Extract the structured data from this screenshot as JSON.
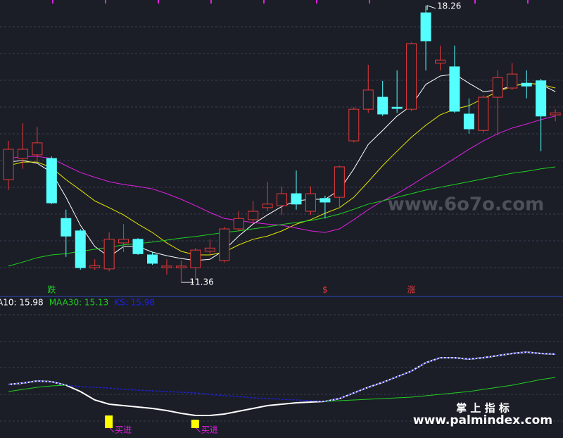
{
  "chart_data": {
    "type": "candlestick",
    "ylim": [
      11.0,
      18.4
    ],
    "candles": [
      {
        "open": 13.91,
        "close": 14.67,
        "high": 14.88,
        "low": 13.65
      },
      {
        "open": 14.44,
        "close": 14.67,
        "high": 15.32,
        "low": 14.18
      },
      {
        "open": 14.53,
        "close": 14.83,
        "high": 15.23,
        "low": 14.35
      },
      {
        "open": 14.44,
        "close": 13.33,
        "high": 14.49,
        "low": 13.3
      },
      {
        "open": 12.94,
        "close": 12.5,
        "high": 13.16,
        "low": 11.98
      },
      {
        "open": 12.63,
        "close": 11.71,
        "high": 12.68,
        "low": 11.66
      },
      {
        "open": 11.71,
        "close": 11.76,
        "high": 11.92,
        "low": 11.66
      },
      {
        "open": 11.68,
        "close": 12.42,
        "high": 12.59,
        "low": 11.62
      },
      {
        "open": 12.33,
        "close": 12.42,
        "high": 12.8,
        "low": 12.1
      },
      {
        "open": 12.42,
        "close": 12.06,
        "high": 12.45,
        "low": 12.03
      },
      {
        "open": 12.03,
        "close": 11.82,
        "high": 12.1,
        "low": 11.78
      },
      {
        "open": 11.71,
        "close": 11.75,
        "high": 11.92,
        "low": 11.54
      },
      {
        "open": 11.71,
        "close": 11.75,
        "high": 11.89,
        "low": 11.36
      },
      {
        "open": 11.71,
        "close": 12.15,
        "high": 12.2,
        "low": 11.4
      },
      {
        "open": 12.12,
        "close": 12.2,
        "high": 12.42,
        "low": 12.03
      },
      {
        "open": 11.89,
        "close": 12.68,
        "high": 12.73,
        "low": 11.84
      },
      {
        "open": 12.68,
        "close": 12.94,
        "high": 13.12,
        "low": 12.63
      },
      {
        "open": 12.91,
        "close": 13.12,
        "high": 13.38,
        "low": 12.8
      },
      {
        "open": 13.21,
        "close": 13.3,
        "high": 13.86,
        "low": 13.12
      },
      {
        "open": 13.26,
        "close": 13.56,
        "high": 13.74,
        "low": 13.03
      },
      {
        "open": 13.56,
        "close": 13.3,
        "high": 14.14,
        "low": 13.16
      },
      {
        "open": 13.12,
        "close": 13.56,
        "high": 13.74,
        "low": 13.03
      },
      {
        "open": 13.44,
        "close": 13.35,
        "high": 13.51,
        "low": 12.94
      },
      {
        "open": 13.47,
        "close": 14.23,
        "high": 14.26,
        "low": 13.21
      },
      {
        "open": 14.88,
        "close": 15.67,
        "high": 15.72,
        "low": 14.84
      },
      {
        "open": 15.67,
        "close": 16.15,
        "high": 16.78,
        "low": 15.58
      },
      {
        "open": 15.97,
        "close": 15.55,
        "high": 16.38,
        "low": 15.5
      },
      {
        "open": 15.72,
        "close": 15.69,
        "high": 16.64,
        "low": 15.58
      },
      {
        "open": 15.67,
        "close": 17.31,
        "high": 17.34,
        "low": 15.62
      },
      {
        "open": 18.08,
        "close": 17.38,
        "high": 18.26,
        "low": 16.64
      },
      {
        "open": 16.82,
        "close": 16.9,
        "high": 17.26,
        "low": 16.64
      },
      {
        "open": 16.73,
        "close": 15.62,
        "high": 17.26,
        "low": 15.58
      },
      {
        "open": 15.55,
        "close": 15.18,
        "high": 15.94,
        "low": 15.06
      },
      {
        "open": 15.14,
        "close": 15.97,
        "high": 16.02,
        "low": 15.09
      },
      {
        "open": 15.97,
        "close": 16.46,
        "high": 16.64,
        "low": 15.02
      },
      {
        "open": 16.2,
        "close": 16.55,
        "high": 16.82,
        "low": 16.15
      },
      {
        "open": 16.32,
        "close": 16.25,
        "high": 16.64,
        "low": 15.94
      },
      {
        "open": 16.38,
        "close": 15.5,
        "high": 16.43,
        "low": 14.62
      },
      {
        "open": 15.53,
        "close": 15.58,
        "high": 15.67,
        "low": 15.37
      }
    ],
    "up_color": "#e8393a",
    "down_color": "#54ffff",
    "lines": [
      {
        "color": "#ffffff",
        "values": [
          14.35,
          14.39,
          14.32,
          14.09,
          13.47,
          12.77,
          12.24,
          11.98,
          12.24,
          12.24,
          12.1,
          12.01,
          11.94,
          11.89,
          11.92,
          12.15,
          12.5,
          12.8,
          13.03,
          13.24,
          13.38,
          13.42,
          13.42,
          13.65,
          14.18,
          14.79,
          15.14,
          15.5,
          15.76,
          16.29,
          16.5,
          16.55,
          16.32,
          16.11,
          16.15,
          16.25,
          16.32,
          16.29,
          16.11
        ]
      },
      {
        "color": "#e6e600",
        "values": [
          14.26,
          14.35,
          14.35,
          14.21,
          13.91,
          13.65,
          13.38,
          13.21,
          13.03,
          12.8,
          12.59,
          12.33,
          12.12,
          12.03,
          12.03,
          12.1,
          12.28,
          12.42,
          12.5,
          12.63,
          12.8,
          12.91,
          13.07,
          13.21,
          13.47,
          13.86,
          14.26,
          14.62,
          14.97,
          15.27,
          15.53,
          15.67,
          15.76,
          15.94,
          16.11,
          16.24,
          16.32,
          16.29,
          16.2
        ]
      },
      {
        "color": "#e020e0",
        "values": [
          14.44,
          14.49,
          14.49,
          14.44,
          14.26,
          14.09,
          13.97,
          13.86,
          13.79,
          13.74,
          13.68,
          13.56,
          13.42,
          13.26,
          13.09,
          12.94,
          12.89,
          12.84,
          12.8,
          12.77,
          12.7,
          12.63,
          12.59,
          12.68,
          12.91,
          13.16,
          13.38,
          13.56,
          13.77,
          14.0,
          14.21,
          14.44,
          14.67,
          14.88,
          15.06,
          15.2,
          15.3,
          15.41,
          15.5
        ]
      },
      {
        "color": "#20d020",
        "values": [
          11.75,
          11.85,
          11.96,
          12.03,
          12.06,
          12.12,
          12.17,
          12.22,
          12.28,
          12.31,
          12.35,
          12.4,
          12.45,
          12.49,
          12.54,
          12.59,
          12.63,
          12.68,
          12.73,
          12.79,
          12.84,
          12.89,
          12.96,
          13.05,
          13.17,
          13.3,
          13.38,
          13.47,
          13.56,
          13.65,
          13.72,
          13.79,
          13.86,
          13.93,
          14.0,
          14.07,
          14.12,
          14.18,
          14.23
        ]
      }
    ],
    "annotations": [
      {
        "index": 3,
        "text": "跌",
        "color": "#20d020"
      },
      {
        "index": 22,
        "text": "$",
        "color": "#e8393a"
      },
      {
        "index": 28,
        "text": "涨",
        "color": "#e8393a"
      }
    ],
    "legend": [
      {
        "text": "A10: 15.98",
        "color": "#ffffff"
      },
      {
        "text": "MAA30: 15.13",
        "color": "#20d020"
      },
      {
        "text": "KS: 15.98",
        "color": "#2020e0"
      }
    ],
    "lower": {
      "ylim": [
        0,
        100
      ],
      "lines": [
        {
          "color": "#ffffff",
          "values": [
            38,
            39,
            40.5,
            40,
            37.5,
            33,
            27,
            24,
            23,
            22,
            21,
            19.5,
            17.5,
            16,
            16,
            17,
            19,
            21,
            23,
            24,
            25,
            25.5,
            26,
            28,
            32,
            36,
            39.5,
            43.5,
            47.5,
            53.5,
            57,
            57,
            56,
            57,
            58.5,
            60,
            61,
            60,
            59.5
          ]
        },
        {
          "color": "#2020d0",
          "values": [
            38,
            39,
            40.5,
            40,
            37.5,
            36.5,
            36,
            35.5,
            34.5,
            34,
            33.5,
            33,
            32.5,
            32,
            31,
            30,
            29.5,
            28.5,
            28,
            27.5,
            27,
            26.5,
            26,
            28,
            32,
            36,
            39.5,
            43.5,
            47.5,
            53.5,
            57,
            57,
            56,
            57,
            58.5,
            60,
            61,
            60,
            59.5
          ]
        },
        {
          "color": "#20d020",
          "values": [
            33,
            34.5,
            36,
            37,
            37.5,
            null,
            null,
            null,
            null,
            null,
            null,
            null,
            null,
            null,
            null,
            null,
            null,
            null,
            null,
            null,
            null,
            null,
            26,
            26.5,
            27,
            27.5,
            28,
            28.5,
            29,
            30,
            31,
            32,
            33,
            34.5,
            36,
            37.5,
            39.5,
            41.5,
            43
          ]
        }
      ],
      "buy_signals": {
        "positions": [
          7,
          13
        ],
        "label": "买进",
        "color": "#ffff00"
      }
    },
    "watermarks": [
      "www.6o7o.com",
      "掌 上 指 标",
      "www.palmindex.com"
    ]
  }
}
